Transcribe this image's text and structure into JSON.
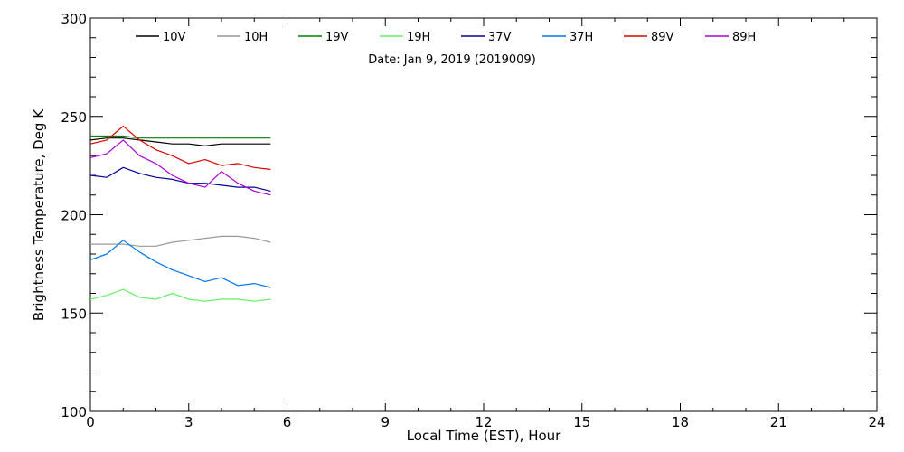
{
  "chart_data": {
    "type": "line",
    "subtitle": "Date: Jan  9, 2019 (2019009)",
    "xlabel": "Local Time (EST), Hour",
    "ylabel": "Brightness Temperature, Deg K",
    "xlim": [
      0,
      24
    ],
    "ylim": [
      100,
      300
    ],
    "xticks": [
      0,
      3,
      6,
      9,
      12,
      15,
      18,
      21,
      24
    ],
    "yticks": [
      100,
      150,
      200,
      250,
      300
    ],
    "grid": false,
    "legend_position": "top",
    "series": [
      {
        "name": "10V",
        "color": "#000000",
        "x": [
          0,
          0.5,
          1,
          1.5,
          2,
          2.5,
          3,
          3.5,
          4,
          4.5,
          5,
          5.5
        ],
        "y": [
          238,
          239,
          239,
          238,
          237,
          236,
          236,
          235,
          236,
          236,
          236,
          236
        ]
      },
      {
        "name": "10H",
        "color": "#999999",
        "x": [
          0,
          0.5,
          1,
          1.5,
          2,
          2.5,
          3,
          3.5,
          4,
          4.5,
          5,
          5.5
        ],
        "y": [
          185,
          185,
          185,
          184,
          184,
          186,
          187,
          188,
          189,
          189,
          188,
          186
        ]
      },
      {
        "name": "19V",
        "color": "#008000",
        "x": [
          0,
          0.5,
          1,
          1.5,
          2,
          2.5,
          3,
          3.5,
          4,
          4.5,
          5,
          5.5
        ],
        "y": [
          240,
          240,
          240,
          239,
          239,
          239,
          239,
          239,
          239,
          239,
          239,
          239
        ]
      },
      {
        "name": "19H",
        "color": "#66ee66",
        "x": [
          0,
          0.5,
          1,
          1.5,
          2,
          2.5,
          3,
          3.5,
          4,
          4.5,
          5,
          5.5
        ],
        "y": [
          157,
          159,
          162,
          158,
          157,
          160,
          157,
          156,
          157,
          157,
          156,
          157
        ]
      },
      {
        "name": "37V",
        "color": "#000099",
        "x": [
          0,
          0.5,
          1,
          1.5,
          2,
          2.5,
          3,
          3.5,
          4,
          4.5,
          5,
          5.5
        ],
        "y": [
          220,
          219,
          224,
          221,
          219,
          218,
          216,
          216,
          215,
          214,
          214,
          212
        ]
      },
      {
        "name": "37H",
        "color": "#0077ee",
        "x": [
          0,
          0.5,
          1,
          1.5,
          2,
          2.5,
          3,
          3.5,
          4,
          4.5,
          5,
          5.5
        ],
        "y": [
          177,
          180,
          187,
          181,
          176,
          172,
          169,
          166,
          168,
          164,
          165,
          163
        ]
      },
      {
        "name": "89V",
        "color": "#dd0000",
        "x": [
          0,
          0.5,
          1,
          1.5,
          2,
          2.5,
          3,
          3.5,
          4,
          4.5,
          5,
          5.5
        ],
        "y": [
          236,
          238,
          245,
          238,
          233,
          230,
          226,
          228,
          225,
          226,
          224,
          223
        ]
      },
      {
        "name": "89H",
        "color": "#aa00dd",
        "x": [
          0,
          0.5,
          1,
          1.5,
          2,
          2.5,
          3,
          3.5,
          4,
          4.5,
          5,
          5.5
        ],
        "y": [
          229,
          231,
          238,
          230,
          226,
          220,
          216,
          214,
          222,
          216,
          212,
          210
        ]
      }
    ]
  }
}
